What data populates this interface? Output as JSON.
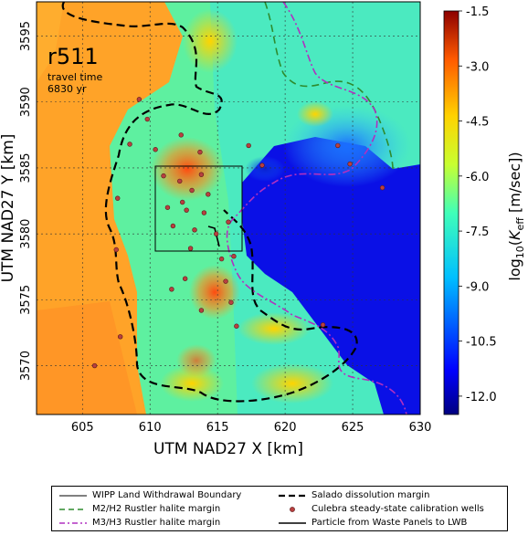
{
  "title": "r511",
  "subtitle_line1": "travel time",
  "subtitle_line2": "6830 yr",
  "chart_data": {
    "type": "heatmap",
    "xlabel": "UTM NAD27 X [km]",
    "ylabel": "UTM NAD27 Y [km]",
    "xlim": [
      601.6,
      630.0
    ],
    "ylim": [
      3566.3,
      3597.6
    ],
    "xticks": [
      "605",
      "610",
      "615",
      "620",
      "625",
      "630"
    ],
    "yticks": [
      "3570",
      "3575",
      "3580",
      "3585",
      "3590",
      "3595"
    ],
    "colorbar_label": "log10(K_eff [m/sec])",
    "colorbar_ticks": [
      "-1.5",
      "-3.0",
      "-4.5",
      "-6.0",
      "-7.5",
      "-9.0",
      "-10.5",
      "-12.0"
    ],
    "colorbar_range": [
      -12.5,
      -1.5
    ],
    "grid": true,
    "wipp_box": {
      "x": [
        610.5,
        617.0
      ],
      "y": [
        3577.9,
        3585.2
      ]
    },
    "wells": [
      [
        609.2,
        3590.2
      ],
      [
        609.8,
        3588.7
      ],
      [
        608.5,
        3586.8
      ],
      [
        607.6,
        3582.7
      ],
      [
        607.5,
        3578.8
      ],
      [
        607.8,
        3572.2
      ],
      [
        605.9,
        3570.0
      ],
      [
        610.4,
        3586.4
      ],
      [
        611.0,
        3584.4
      ],
      [
        611.3,
        3582.0
      ],
      [
        611.7,
        3580.6
      ],
      [
        612.2,
        3584.0
      ],
      [
        612.4,
        3582.4
      ],
      [
        612.7,
        3581.8
      ],
      [
        613.1,
        3583.3
      ],
      [
        613.3,
        3580.3
      ],
      [
        613.8,
        3584.5
      ],
      [
        614.0,
        3581.6
      ],
      [
        614.3,
        3583.0
      ],
      [
        614.9,
        3580.0
      ],
      [
        613.7,
        3586.2
      ],
      [
        612.3,
        3587.5
      ],
      [
        615.8,
        3580.9
      ],
      [
        615.3,
        3578.1
      ],
      [
        615.6,
        3576.4
      ],
      [
        616.0,
        3574.8
      ],
      [
        613.8,
        3574.2
      ],
      [
        612.6,
        3576.6
      ],
      [
        616.4,
        3573.0
      ],
      [
        617.3,
        3586.7
      ],
      [
        618.3,
        3585.2
      ],
      [
        622.8,
        3573.1
      ],
      [
        624.8,
        3585.3
      ],
      [
        627.2,
        3583.5
      ],
      [
        623.9,
        3586.7
      ],
      [
        616.2,
        3578.3
      ],
      [
        611.6,
        3575.8
      ],
      [
        613.0,
        3578.9
      ]
    ]
  },
  "legend": {
    "items": [
      {
        "label": "WIPP Land Withdrawal Boundary",
        "color": "#000000",
        "style": "solid-thin"
      },
      {
        "label": "M2/H2 Rustler halite margin",
        "color": "#2e8b2e",
        "style": "dashed"
      },
      {
        "label": "M3/H3 Rustler halite margin",
        "color": "#b030c0",
        "style": "dashdot"
      },
      {
        "label": "Salado dissolution margin",
        "color": "#000000",
        "style": "dashed-thick"
      },
      {
        "label": "Culebra steady-state calibration wells",
        "color": "#b84040",
        "style": "dot"
      },
      {
        "label": "Particle from Waste Panels to LWB",
        "color": "#000000",
        "style": "solid"
      }
    ]
  }
}
